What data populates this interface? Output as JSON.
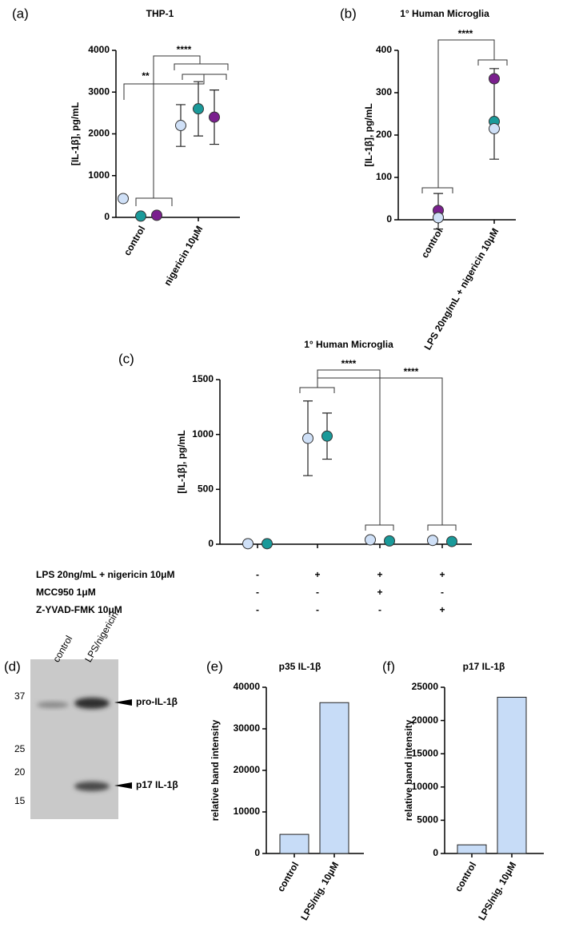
{
  "chart_data": [
    {
      "type": "dot",
      "panel": "(a)",
      "title": "THP-1",
      "y_label": "[IL-1β], pg/mL",
      "categories": [
        "control",
        "nigericin 10μM"
      ],
      "series": [
        {
          "color": "#cfe0f7",
          "values": [
            450,
            2200
          ],
          "errors": [
            null,
            500
          ]
        },
        {
          "color": "#1a9a9a",
          "values": [
            30,
            2600
          ],
          "errors": [
            null,
            650
          ]
        },
        {
          "color": "#7a1f8e",
          "values": [
            50,
            2400
          ],
          "errors": [
            null,
            650
          ]
        }
      ],
      "ylim": [
        0,
        4000
      ],
      "yticks": [
        0,
        1000,
        2000,
        3000,
        4000
      ],
      "annotations": [
        "**",
        "****"
      ]
    },
    {
      "type": "dot",
      "panel": "(b)",
      "title": "1° Human Microglia",
      "y_label": "[IL-1β], pg/mL",
      "categories": [
        "control",
        "LPS 20ng/mL + nigericin 10μM"
      ],
      "series": [
        {
          "color": "#7a1f8e",
          "values": [
            22,
            333
          ]
        },
        {
          "color": "#1a9a9a",
          "values": [
            5,
            232
          ]
        },
        {
          "color": "#cfe0f7",
          "values": [
            5,
            215
          ]
        }
      ],
      "error_bars": {
        "means": [
          20,
          250
        ],
        "errors": [
          42,
          107
        ]
      },
      "ylim": [
        0,
        400
      ],
      "yticks": [
        0,
        100,
        200,
        300,
        400
      ],
      "annotations": [
        "****"
      ]
    },
    {
      "type": "dot",
      "panel": "(c)",
      "title": "1° Human Microglia",
      "y_label": "[IL-1β], pg/mL",
      "categories": [
        null,
        null,
        null,
        null
      ],
      "series": [
        {
          "color": "#cfe0f7",
          "values": [
            5,
            965,
            40,
            35
          ],
          "errors": [
            null,
            340,
            null,
            null
          ]
        },
        {
          "color": "#1a9a9a",
          "values": [
            5,
            985,
            30,
            25
          ],
          "errors": [
            null,
            210,
            null,
            null
          ]
        }
      ],
      "ylim": [
        0,
        1500
      ],
      "yticks": [
        0,
        500,
        1000,
        1500
      ],
      "annotations": [
        "****",
        "****"
      ],
      "treatments": [
        {
          "label": "LPS 20ng/mL + nigericin 10μM",
          "signs": [
            "-",
            "+",
            "+",
            "+"
          ]
        },
        {
          "label": "MCC950 1μM",
          "signs": [
            "-",
            "-",
            "+",
            "-"
          ]
        },
        {
          "label": "Z-YVAD-FMK 10μM",
          "signs": [
            "-",
            "-",
            "-",
            "+"
          ]
        }
      ]
    },
    {
      "type": "bar",
      "panel": "(e)",
      "title": "p35 IL-1β",
      "y_label": "relative band intensity",
      "categories": [
        "control",
        "LPS/nig. 10μM"
      ],
      "values": [
        4600,
        36300
      ],
      "color": "#c7dcf7",
      "ylim": [
        0,
        40000
      ],
      "yticks": [
        0,
        10000,
        20000,
        30000,
        40000
      ]
    },
    {
      "type": "bar",
      "panel": "(f)",
      "title": "p17 IL-1β",
      "y_label": "relative band intensity",
      "categories": [
        "control",
        "LPS/nig. 10μM"
      ],
      "values": [
        1300,
        23500
      ],
      "color": "#c7dcf7",
      "ylim": [
        0,
        25000
      ],
      "yticks": [
        0,
        5000,
        10000,
        15000,
        20000,
        25000
      ]
    }
  ],
  "blot": {
    "panel": "(d)",
    "lanes": [
      "control",
      "LPS/nigericin"
    ],
    "markers": [
      37,
      25,
      20,
      15
    ],
    "bands": [
      "pro-IL-1β",
      "p17 IL-1β"
    ]
  }
}
